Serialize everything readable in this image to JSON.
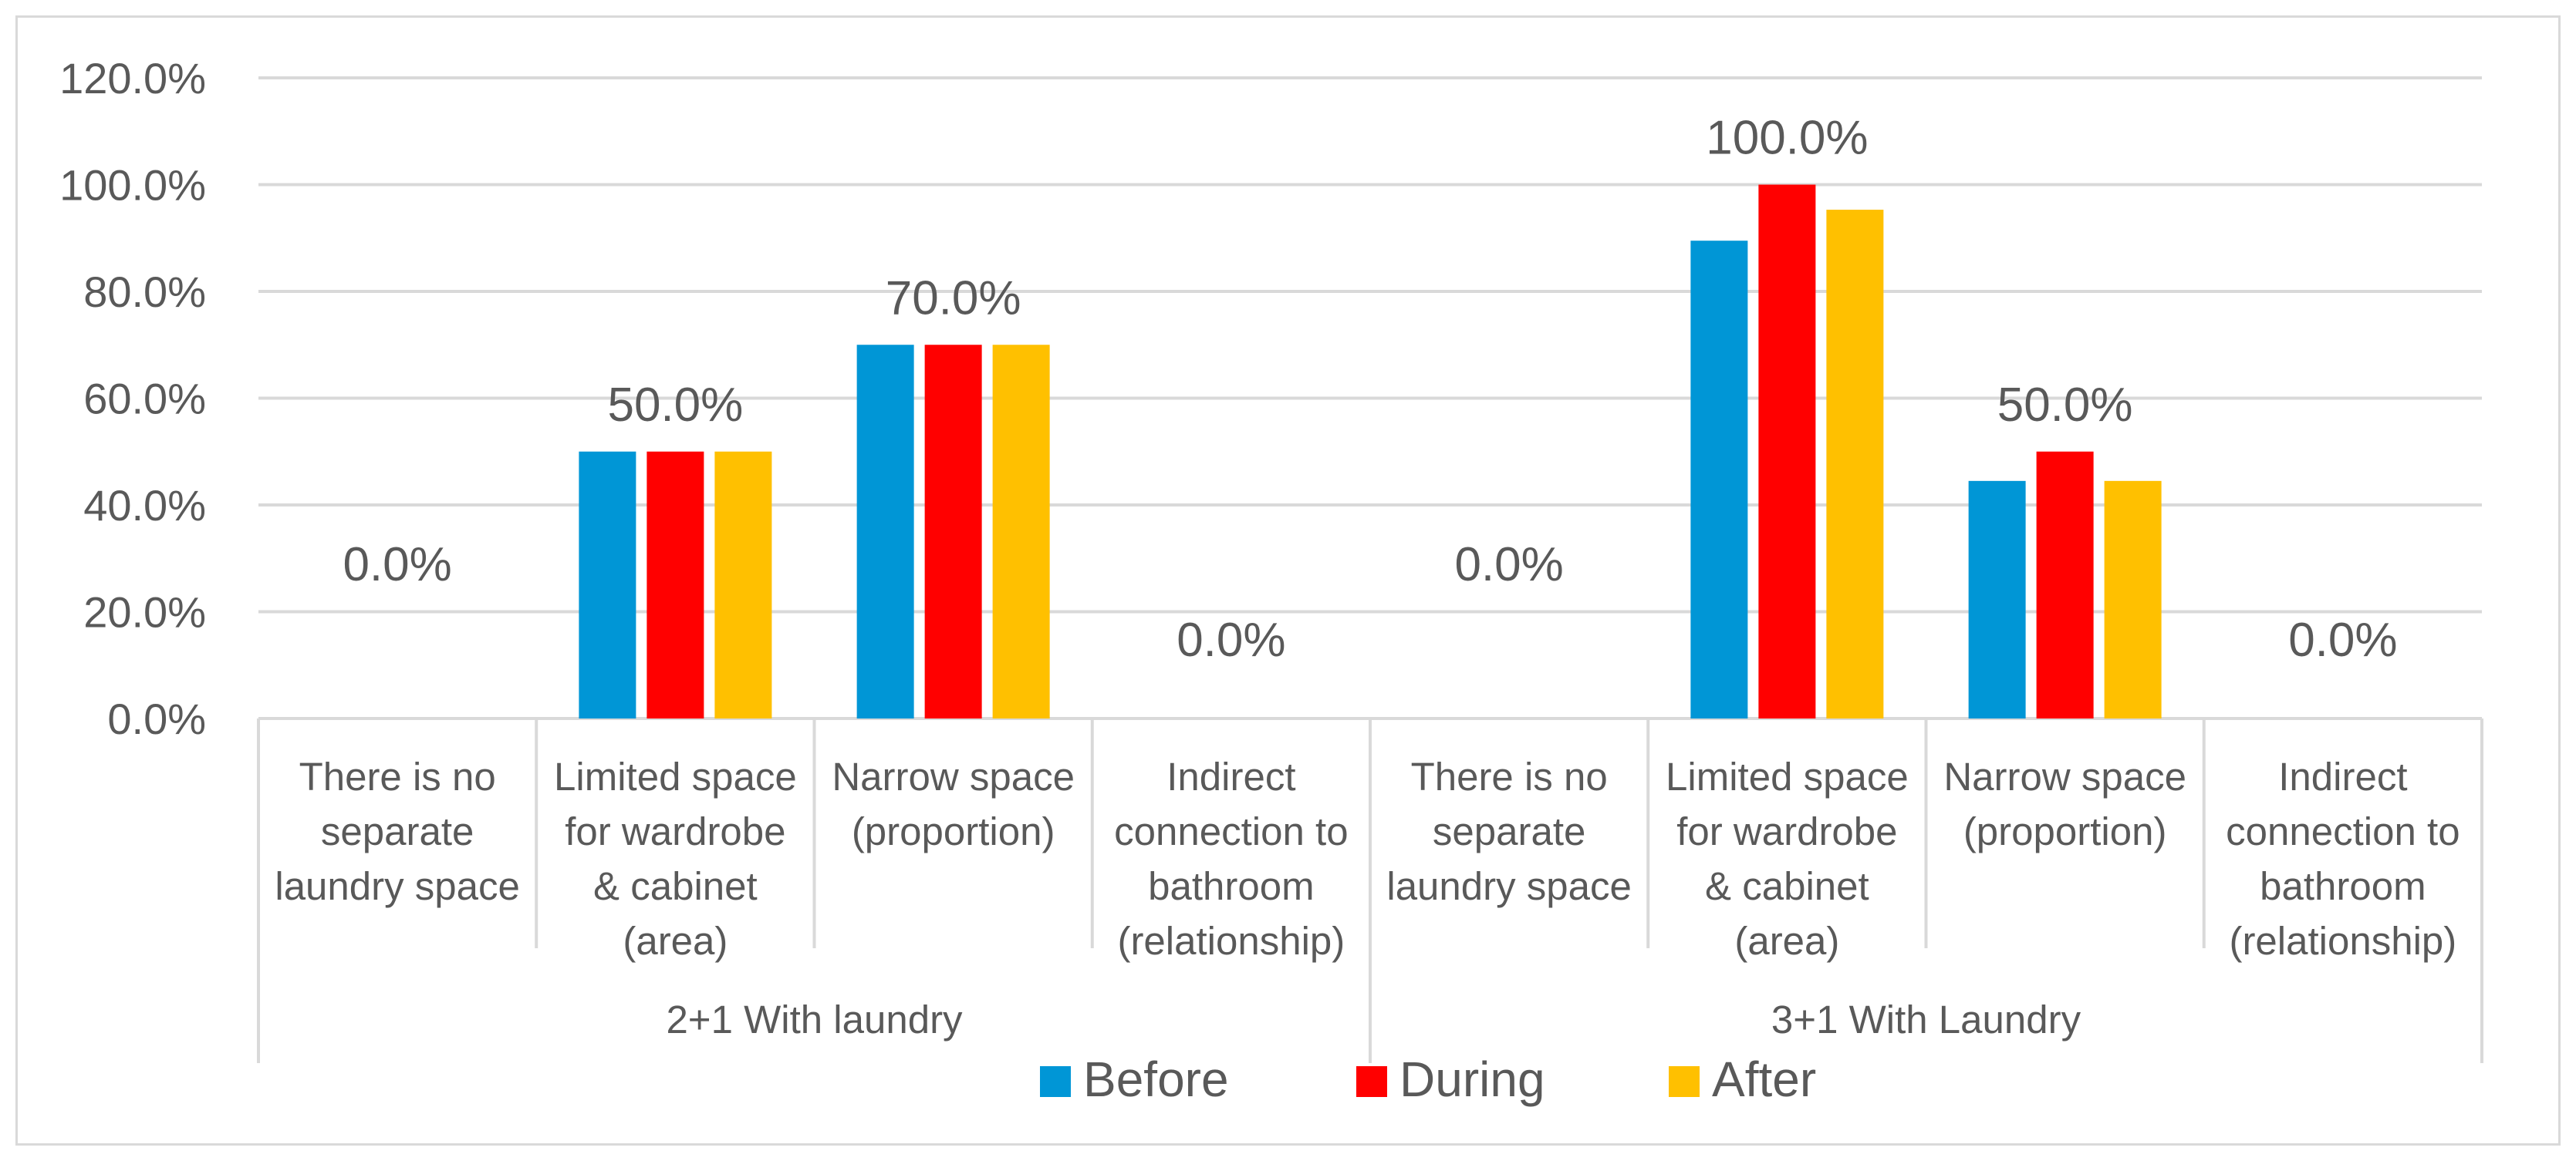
{
  "chart_data": {
    "type": "bar",
    "title": "",
    "xlabel": "",
    "ylabel": "",
    "ylim": [
      0,
      1.2
    ],
    "y_ticks": [
      "0.0%",
      "20.0%",
      "40.0%",
      "60.0%",
      "80.0%",
      "100.0%",
      "120.0%"
    ],
    "grid": true,
    "legend_position": "bottom",
    "groups": [
      {
        "name": "2+1 With laundry",
        "categories": [
          [
            "There is no",
            "separate",
            "laundry space"
          ],
          [
            "Limited space",
            "for wardrobe",
            "& cabinet",
            "(area)"
          ],
          [
            "Narrow space",
            "(proportion)"
          ],
          [
            "Indirect",
            "connection to",
            "bathroom",
            "(relationship)"
          ]
        ],
        "data_labels": [
          "0.0%",
          "50.0%",
          "70.0%",
          "0.0%"
        ]
      },
      {
        "name": "3+1 With Laundry",
        "categories": [
          [
            "There is no",
            "separate",
            "laundry space"
          ],
          [
            "Limited space",
            "for wardrobe",
            "& cabinet",
            "(area)"
          ],
          [
            "Narrow space",
            "(proportion)"
          ],
          [
            "Indirect",
            "connection to",
            "bathroom",
            "(relationship)"
          ]
        ],
        "data_labels": [
          "0.0%",
          "100.0%",
          "50.0%",
          "0.0%"
        ]
      }
    ],
    "series": [
      {
        "name": "Before",
        "color": "#0096d6",
        "values": [
          0,
          0.5,
          0.7,
          0,
          0,
          0.895,
          0.445,
          0
        ]
      },
      {
        "name": "During",
        "color": "#ff0000",
        "values": [
          0,
          0.5,
          0.7,
          0,
          0,
          1.0,
          0.5,
          0
        ]
      },
      {
        "name": "After",
        "color": "#ffc000",
        "values": [
          0,
          0.5,
          0.7,
          0,
          0,
          0.953,
          0.445,
          0
        ]
      }
    ]
  }
}
